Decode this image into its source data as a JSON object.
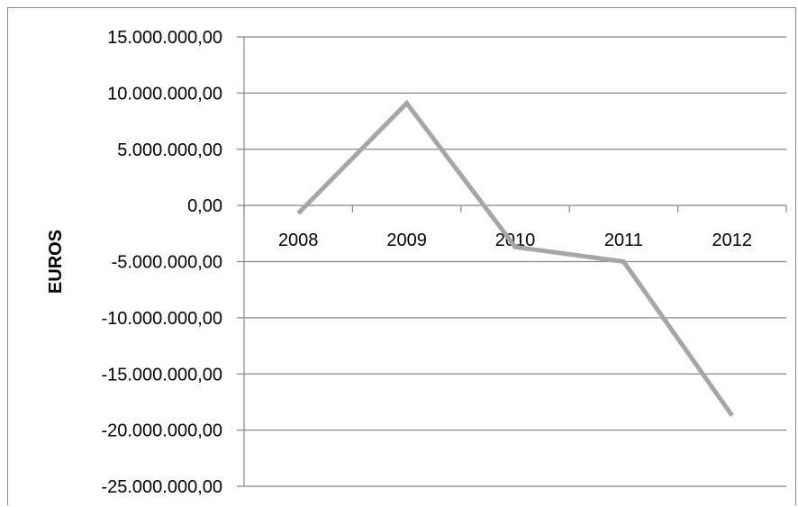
{
  "chart_data": {
    "type": "line",
    "title": "",
    "xlabel": "",
    "ylabel": "EUROS",
    "categories": [
      "2008",
      "2009",
      "2010",
      "2011",
      "2012"
    ],
    "series": [
      {
        "values": [
          -700000,
          9100000,
          -3700000,
          -5000000,
          -18700000
        ]
      }
    ],
    "ylim": [
      -25000000,
      15000000
    ],
    "ytick_values": [
      15000000,
      10000000,
      5000000,
      0,
      -5000000,
      -10000000,
      -15000000,
      -20000000,
      -25000000
    ],
    "ytick_labels": [
      "15.000.000,00",
      "10.000.000,00",
      "5.000.000,00",
      "0,00",
      "-5.000.000,00",
      "-10.000.000,00",
      "-15.000.000,00",
      "-20.000.000,00",
      "-25.000.000,00"
    ],
    "grid": true,
    "legend": "none",
    "colors": {
      "line": "#a6a6a6",
      "grid": "#878787",
      "axis": "#878787"
    }
  }
}
